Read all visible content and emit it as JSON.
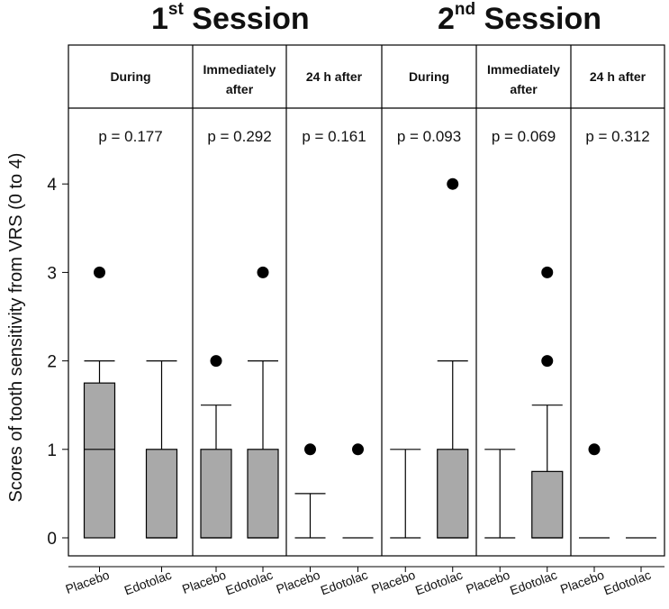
{
  "sessions": [
    {
      "number": "1",
      "suffix": "st",
      "label": "Session"
    },
    {
      "number": "2",
      "suffix": "nd",
      "label": "Session"
    }
  ],
  "colors": {
    "box_fill": "#a9a9a9",
    "line": "#000000",
    "background": "#ffffff"
  },
  "chart_data": {
    "type": "box",
    "ylabel": "Scores of tooth sensitivity from VRS (0 to 4)",
    "ylim": [
      -0.2,
      4.6
    ],
    "yticks": [
      "0",
      "1",
      "2",
      "3",
      "4"
    ],
    "grid": false,
    "panels": [
      {
        "session": "1st Session",
        "header": [
          "During"
        ],
        "pvalue": "p = 0.177",
        "groups": [
          {
            "name": "Placebo",
            "q1": 0,
            "median": 1,
            "q3": 1.75,
            "whisker_low": 0,
            "whisker_high": 2,
            "outliers": [
              3
            ]
          },
          {
            "name": "Edotolac",
            "q1": 0,
            "median": 0,
            "q3": 1,
            "whisker_low": 0,
            "whisker_high": 2,
            "outliers": []
          }
        ]
      },
      {
        "session": "1st Session",
        "header": [
          "Immediately",
          "after"
        ],
        "pvalue": "p = 0.292",
        "groups": [
          {
            "name": "Placebo",
            "q1": 0,
            "median": 0,
            "q3": 1,
            "whisker_low": 0,
            "whisker_high": 1.5,
            "outliers": [
              2
            ]
          },
          {
            "name": "Edotolac",
            "q1": 0,
            "median": 0,
            "q3": 1,
            "whisker_low": 0,
            "whisker_high": 2,
            "outliers": [
              3
            ]
          }
        ]
      },
      {
        "session": "1st Session",
        "header": [
          "24 h after"
        ],
        "pvalue": "p = 0.161",
        "groups": [
          {
            "name": "Placebo",
            "q1": 0,
            "median": 0,
            "q3": 0,
            "whisker_low": 0,
            "whisker_high": 0.5,
            "outliers": [
              1
            ]
          },
          {
            "name": "Edotolac",
            "q1": 0,
            "median": 0,
            "q3": 0,
            "whisker_low": 0,
            "whisker_high": 0,
            "outliers": [
              1
            ]
          }
        ]
      },
      {
        "session": "2nd Session",
        "header": [
          "During"
        ],
        "pvalue": "p = 0.093",
        "groups": [
          {
            "name": "Placebo",
            "q1": 0,
            "median": 0,
            "q3": 0,
            "whisker_low": 0,
            "whisker_high": 1,
            "outliers": []
          },
          {
            "name": "Edotolac",
            "q1": 0,
            "median": 0,
            "q3": 1,
            "whisker_low": 0,
            "whisker_high": 2,
            "outliers": [
              4
            ]
          }
        ]
      },
      {
        "session": "2nd Session",
        "header": [
          "Immediately",
          "after"
        ],
        "pvalue": "p = 0.069",
        "groups": [
          {
            "name": "Placebo",
            "q1": 0,
            "median": 0,
            "q3": 0,
            "whisker_low": 0,
            "whisker_high": 1,
            "outliers": []
          },
          {
            "name": "Edotolac",
            "q1": 0,
            "median": 0,
            "q3": 0.75,
            "whisker_low": 0,
            "whisker_high": 1.5,
            "outliers": [
              2,
              3
            ]
          }
        ]
      },
      {
        "session": "2nd Session",
        "header": [
          "24 h after"
        ],
        "pvalue": "p = 0.312",
        "groups": [
          {
            "name": "Placebo",
            "q1": 0,
            "median": 0,
            "q3": 0,
            "whisker_low": 0,
            "whisker_high": 0,
            "outliers": [
              1
            ]
          },
          {
            "name": "Edotolac",
            "q1": 0,
            "median": 0,
            "q3": 0,
            "whisker_low": 0,
            "whisker_high": 0,
            "outliers": []
          }
        ]
      }
    ]
  }
}
